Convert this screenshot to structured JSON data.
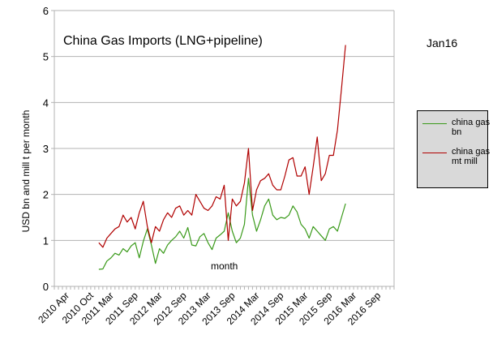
{
  "chart_data": {
    "type": "line",
    "title": "China Gas Imports (LNG+pipeline)",
    "annotation": "month",
    "side_label": "Jan16",
    "ylabel": "USD bn and mill t per month",
    "xlabel": "",
    "ylim": [
      0,
      6
    ],
    "yticks": [
      0,
      1,
      2,
      3,
      4,
      5,
      6
    ],
    "x_range": [
      "2010-01",
      "2016-12"
    ],
    "xtick_labels": [
      {
        "date": "2010-04",
        "label": "2010 Apr"
      },
      {
        "date": "2010-10",
        "label": "2010 Oct"
      },
      {
        "date": "2011-03",
        "label": "2011 Mar"
      },
      {
        "date": "2011-09",
        "label": "2011 Sep"
      },
      {
        "date": "2012-03",
        "label": "2012 Mar"
      },
      {
        "date": "2012-09",
        "label": "2012 Sep"
      },
      {
        "date": "2013-03",
        "label": "2013 Mar"
      },
      {
        "date": "2013-09",
        "label": "2013 Sep"
      },
      {
        "date": "2014-03",
        "label": "2014 Mar"
      },
      {
        "date": "2014-09",
        "label": "2014 Sep"
      },
      {
        "date": "2015-03",
        "label": "2015 Mar"
      },
      {
        "date": "2015-09",
        "label": "2015 Sep"
      },
      {
        "date": "2016-03",
        "label": "2016 Mar"
      },
      {
        "date": "2016-09",
        "label": "2016 Sep"
      }
    ],
    "grid": "horizontal",
    "legend_position": "right",
    "x": [
      "2010-12",
      "2011-01",
      "2011-02",
      "2011-03",
      "2011-04",
      "2011-05",
      "2011-06",
      "2011-07",
      "2011-08",
      "2011-09",
      "2011-10",
      "2011-11",
      "2011-12",
      "2012-01",
      "2012-02",
      "2012-03",
      "2012-04",
      "2012-05",
      "2012-06",
      "2012-07",
      "2012-08",
      "2012-09",
      "2012-10",
      "2012-11",
      "2012-12",
      "2013-01",
      "2013-02",
      "2013-03",
      "2013-04",
      "2013-05",
      "2013-06",
      "2013-07",
      "2013-08",
      "2013-09",
      "2013-10",
      "2013-11",
      "2013-12",
      "2014-01",
      "2014-02",
      "2014-03",
      "2014-04",
      "2014-05",
      "2014-06",
      "2014-07",
      "2014-08",
      "2014-09",
      "2014-10",
      "2014-11",
      "2014-12",
      "2015-01",
      "2015-02",
      "2015-03",
      "2015-04",
      "2015-05",
      "2015-06",
      "2015-07",
      "2015-08",
      "2015-09",
      "2015-10",
      "2015-11",
      "2015-12",
      "2016-01"
    ],
    "series": [
      {
        "name": "china gas bn",
        "color": "#3a9a1a",
        "values": [
          0.37,
          0.38,
          0.55,
          0.62,
          0.72,
          0.68,
          0.82,
          0.75,
          0.88,
          0.95,
          0.62,
          0.98,
          1.25,
          0.9,
          0.5,
          0.82,
          0.72,
          0.9,
          1.0,
          1.08,
          1.2,
          1.05,
          1.28,
          0.9,
          0.88,
          1.08,
          1.15,
          0.95,
          0.8,
          1.05,
          1.12,
          1.2,
          1.6,
          1.2,
          0.95,
          1.05,
          1.35,
          2.35,
          1.55,
          1.2,
          1.45,
          1.75,
          1.9,
          1.55,
          1.45,
          1.5,
          1.48,
          1.55,
          1.75,
          1.62,
          1.35,
          1.25,
          1.05,
          1.3,
          1.2,
          1.1,
          1.0,
          1.25,
          1.3,
          1.2,
          1.5,
          1.8
        ]
      },
      {
        "name": "china gas mt mill",
        "color": "#b00000",
        "values": [
          0.95,
          0.85,
          1.05,
          1.15,
          1.25,
          1.3,
          1.55,
          1.4,
          1.5,
          1.25,
          1.6,
          1.85,
          1.3,
          0.95,
          1.3,
          1.2,
          1.45,
          1.6,
          1.5,
          1.7,
          1.75,
          1.55,
          1.65,
          1.55,
          2.0,
          1.85,
          1.7,
          1.65,
          1.75,
          1.95,
          1.9,
          2.2,
          1.0,
          1.9,
          1.75,
          1.85,
          2.25,
          3.0,
          1.65,
          2.1,
          2.3,
          2.35,
          2.45,
          2.2,
          2.1,
          2.1,
          2.4,
          2.75,
          2.8,
          2.4,
          2.4,
          2.6,
          2.0,
          2.6,
          3.25,
          2.3,
          2.45,
          2.85,
          2.85,
          3.4,
          4.3,
          5.25
        ]
      }
    ]
  }
}
